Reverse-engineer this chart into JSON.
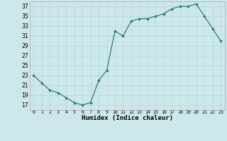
{
  "x": [
    0,
    1,
    2,
    3,
    4,
    5,
    6,
    7,
    8,
    9,
    10,
    11,
    12,
    13,
    14,
    15,
    16,
    17,
    18,
    19,
    20,
    21,
    22,
    23
  ],
  "y": [
    23,
    21.5,
    20,
    19.5,
    18.5,
    17.5,
    17,
    17.5,
    22,
    24,
    32,
    31,
    34,
    34.5,
    34.5,
    35,
    35.5,
    36.5,
    37,
    37,
    37.5,
    35,
    32.5,
    30
  ],
  "xlabel": "Humidex (Indice chaleur)",
  "xlim": [
    -0.5,
    23.5
  ],
  "ylim": [
    16,
    38
  ],
  "yticks": [
    17,
    19,
    21,
    23,
    25,
    27,
    29,
    31,
    33,
    35,
    37
  ],
  "xtick_labels": [
    "0",
    "1",
    "2",
    "3",
    "4",
    "5",
    "6",
    "7",
    "8",
    "9",
    "10",
    "11",
    "12",
    "13",
    "14",
    "15",
    "16",
    "17",
    "18",
    "19",
    "20",
    "21",
    "22",
    "23"
  ],
  "line_color": "#2d7d6f",
  "marker": "D",
  "marker_size": 1.8,
  "bg_color": "#cde8ea",
  "grid_color": "#b8d4d6",
  "fig_bg": "#cde8ea"
}
